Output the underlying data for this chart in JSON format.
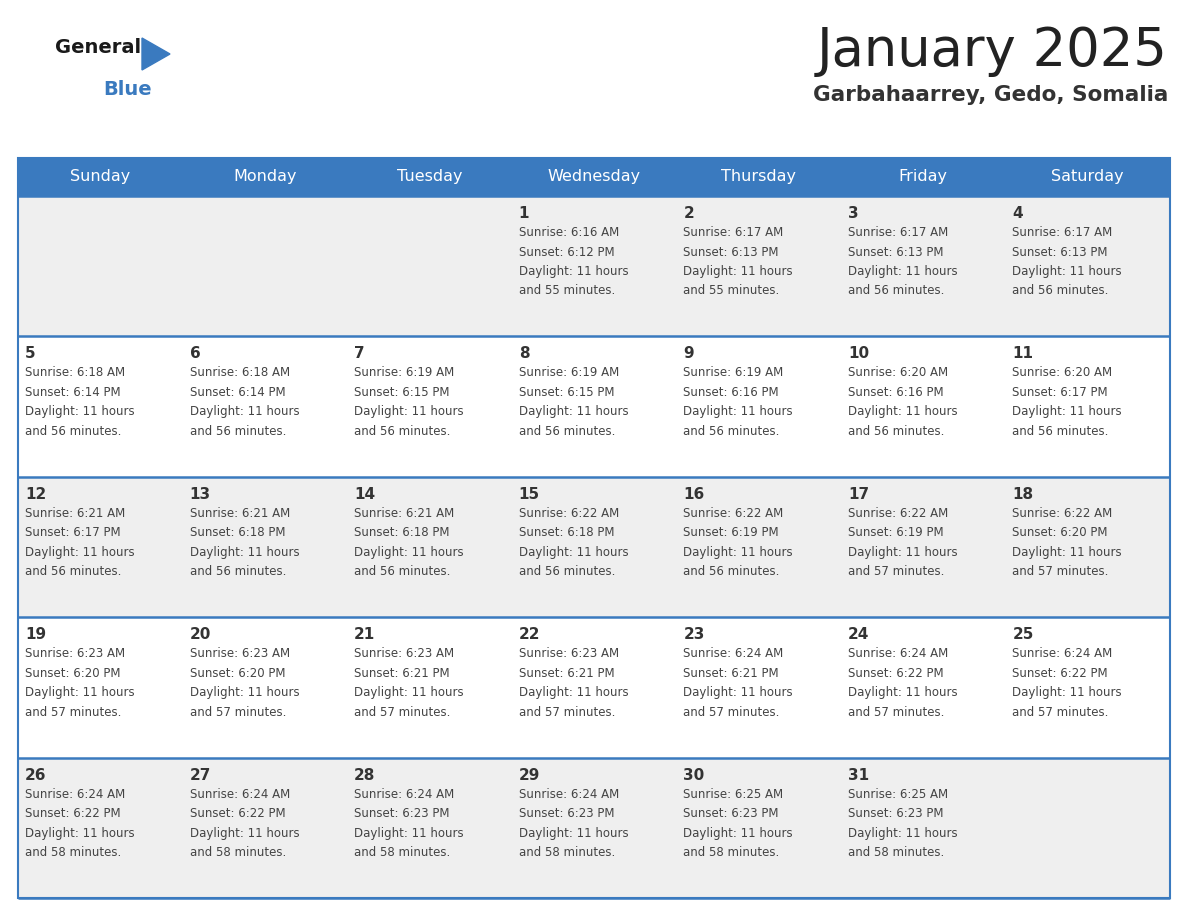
{
  "title": "January 2025",
  "subtitle": "Garbahaarrey, Gedo, Somalia",
  "days_of_week": [
    "Sunday",
    "Monday",
    "Tuesday",
    "Wednesday",
    "Thursday",
    "Friday",
    "Saturday"
  ],
  "header_bg": "#3a7abf",
  "header_text": "#ffffff",
  "row_bg_odd": "#efefef",
  "row_bg_even": "#ffffff",
  "separator_color": "#3a7abf",
  "title_color": "#222222",
  "subtitle_color": "#333333",
  "day_number_color": "#333333",
  "cell_text_color": "#444444",
  "logo_general_color": "#1a1a1a",
  "logo_blue_color": "#3a7abf",
  "calendar": [
    [
      null,
      null,
      null,
      {
        "day": 1,
        "sunrise": "6:16 AM",
        "sunset": "6:12 PM",
        "daylight_hours": 11,
        "daylight_minutes": 55
      },
      {
        "day": 2,
        "sunrise": "6:17 AM",
        "sunset": "6:13 PM",
        "daylight_hours": 11,
        "daylight_minutes": 55
      },
      {
        "day": 3,
        "sunrise": "6:17 AM",
        "sunset": "6:13 PM",
        "daylight_hours": 11,
        "daylight_minutes": 56
      },
      {
        "day": 4,
        "sunrise": "6:17 AM",
        "sunset": "6:13 PM",
        "daylight_hours": 11,
        "daylight_minutes": 56
      }
    ],
    [
      {
        "day": 5,
        "sunrise": "6:18 AM",
        "sunset": "6:14 PM",
        "daylight_hours": 11,
        "daylight_minutes": 56
      },
      {
        "day": 6,
        "sunrise": "6:18 AM",
        "sunset": "6:14 PM",
        "daylight_hours": 11,
        "daylight_minutes": 56
      },
      {
        "day": 7,
        "sunrise": "6:19 AM",
        "sunset": "6:15 PM",
        "daylight_hours": 11,
        "daylight_minutes": 56
      },
      {
        "day": 8,
        "sunrise": "6:19 AM",
        "sunset": "6:15 PM",
        "daylight_hours": 11,
        "daylight_minutes": 56
      },
      {
        "day": 9,
        "sunrise": "6:19 AM",
        "sunset": "6:16 PM",
        "daylight_hours": 11,
        "daylight_minutes": 56
      },
      {
        "day": 10,
        "sunrise": "6:20 AM",
        "sunset": "6:16 PM",
        "daylight_hours": 11,
        "daylight_minutes": 56
      },
      {
        "day": 11,
        "sunrise": "6:20 AM",
        "sunset": "6:17 PM",
        "daylight_hours": 11,
        "daylight_minutes": 56
      }
    ],
    [
      {
        "day": 12,
        "sunrise": "6:21 AM",
        "sunset": "6:17 PM",
        "daylight_hours": 11,
        "daylight_minutes": 56
      },
      {
        "day": 13,
        "sunrise": "6:21 AM",
        "sunset": "6:18 PM",
        "daylight_hours": 11,
        "daylight_minutes": 56
      },
      {
        "day": 14,
        "sunrise": "6:21 AM",
        "sunset": "6:18 PM",
        "daylight_hours": 11,
        "daylight_minutes": 56
      },
      {
        "day": 15,
        "sunrise": "6:22 AM",
        "sunset": "6:18 PM",
        "daylight_hours": 11,
        "daylight_minutes": 56
      },
      {
        "day": 16,
        "sunrise": "6:22 AM",
        "sunset": "6:19 PM",
        "daylight_hours": 11,
        "daylight_minutes": 56
      },
      {
        "day": 17,
        "sunrise": "6:22 AM",
        "sunset": "6:19 PM",
        "daylight_hours": 11,
        "daylight_minutes": 57
      },
      {
        "day": 18,
        "sunrise": "6:22 AM",
        "sunset": "6:20 PM",
        "daylight_hours": 11,
        "daylight_minutes": 57
      }
    ],
    [
      {
        "day": 19,
        "sunrise": "6:23 AM",
        "sunset": "6:20 PM",
        "daylight_hours": 11,
        "daylight_minutes": 57
      },
      {
        "day": 20,
        "sunrise": "6:23 AM",
        "sunset": "6:20 PM",
        "daylight_hours": 11,
        "daylight_minutes": 57
      },
      {
        "day": 21,
        "sunrise": "6:23 AM",
        "sunset": "6:21 PM",
        "daylight_hours": 11,
        "daylight_minutes": 57
      },
      {
        "day": 22,
        "sunrise": "6:23 AM",
        "sunset": "6:21 PM",
        "daylight_hours": 11,
        "daylight_minutes": 57
      },
      {
        "day": 23,
        "sunrise": "6:24 AM",
        "sunset": "6:21 PM",
        "daylight_hours": 11,
        "daylight_minutes": 57
      },
      {
        "day": 24,
        "sunrise": "6:24 AM",
        "sunset": "6:22 PM",
        "daylight_hours": 11,
        "daylight_minutes": 57
      },
      {
        "day": 25,
        "sunrise": "6:24 AM",
        "sunset": "6:22 PM",
        "daylight_hours": 11,
        "daylight_minutes": 57
      }
    ],
    [
      {
        "day": 26,
        "sunrise": "6:24 AM",
        "sunset": "6:22 PM",
        "daylight_hours": 11,
        "daylight_minutes": 58
      },
      {
        "day": 27,
        "sunrise": "6:24 AM",
        "sunset": "6:22 PM",
        "daylight_hours": 11,
        "daylight_minutes": 58
      },
      {
        "day": 28,
        "sunrise": "6:24 AM",
        "sunset": "6:23 PM",
        "daylight_hours": 11,
        "daylight_minutes": 58
      },
      {
        "day": 29,
        "sunrise": "6:24 AM",
        "sunset": "6:23 PM",
        "daylight_hours": 11,
        "daylight_minutes": 58
      },
      {
        "day": 30,
        "sunrise": "6:25 AM",
        "sunset": "6:23 PM",
        "daylight_hours": 11,
        "daylight_minutes": 58
      },
      {
        "day": 31,
        "sunrise": "6:25 AM",
        "sunset": "6:23 PM",
        "daylight_hours": 11,
        "daylight_minutes": 58
      },
      null
    ]
  ]
}
